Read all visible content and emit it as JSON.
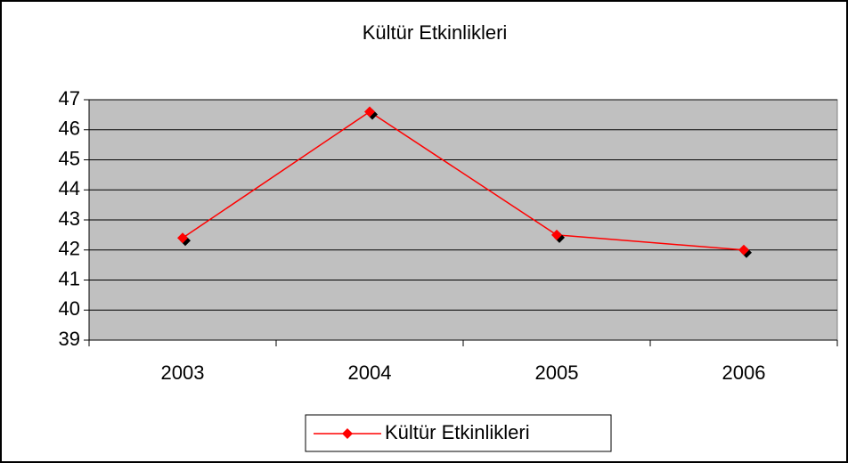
{
  "chart_data": {
    "type": "line",
    "title": "Kültür Etkinlikleri",
    "categories": [
      "2003",
      "2004",
      "2005",
      "2006"
    ],
    "series": [
      {
        "name": "Kültür Etkinlikleri",
        "color": "#ff0000",
        "values": [
          42.4,
          46.6,
          42.5,
          42.0
        ]
      }
    ],
    "ylim": [
      39,
      47
    ],
    "yticks": [
      39,
      40,
      41,
      42,
      43,
      44,
      45,
      46,
      47
    ],
    "grid": true,
    "plot_background": "#c0c0c0",
    "legend": "bottom"
  }
}
